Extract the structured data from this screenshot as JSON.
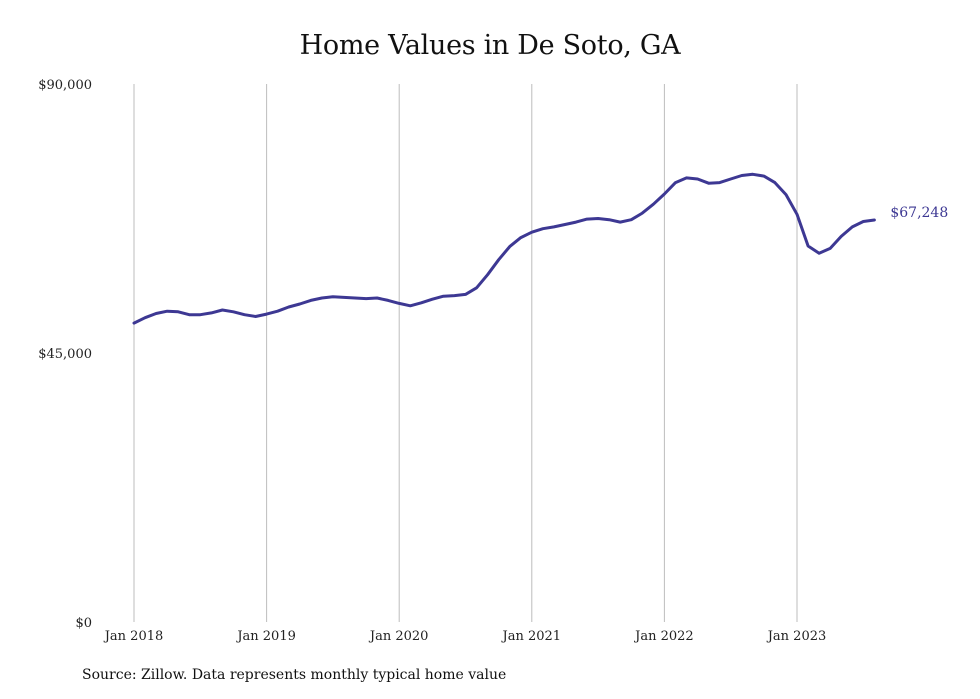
{
  "colors": {
    "line": "#3d3893",
    "grid": "#bdbdbd",
    "text": "#222222",
    "background": "#ffffff"
  },
  "chart_data": {
    "type": "line",
    "title": "Home Values in De Soto, GA",
    "xlabel": "",
    "ylabel": "",
    "ylim": [
      0,
      90000
    ],
    "y_ticks": [
      {
        "value": 0,
        "label": "$0"
      },
      {
        "value": 45000,
        "label": "$45,000"
      },
      {
        "value": 90000,
        "label": "$90,000"
      }
    ],
    "x_ticks": [
      "Jan 2018",
      "Jan 2019",
      "Jan 2020",
      "Jan 2021",
      "Jan 2022",
      "Jan 2023"
    ],
    "grid": "vertical at each x tick",
    "x": [
      "2018-01",
      "2018-02",
      "2018-03",
      "2018-04",
      "2018-05",
      "2018-06",
      "2018-07",
      "2018-08",
      "2018-09",
      "2018-10",
      "2018-11",
      "2018-12",
      "2019-01",
      "2019-02",
      "2019-03",
      "2019-04",
      "2019-05",
      "2019-06",
      "2019-07",
      "2019-08",
      "2019-09",
      "2019-10",
      "2019-11",
      "2019-12",
      "2020-01",
      "2020-02",
      "2020-03",
      "2020-04",
      "2020-05",
      "2020-06",
      "2020-07",
      "2020-08",
      "2020-09",
      "2020-10",
      "2020-11",
      "2020-12",
      "2021-01",
      "2021-02",
      "2021-03",
      "2021-04",
      "2021-05",
      "2021-06",
      "2021-07",
      "2021-08",
      "2021-09",
      "2021-10",
      "2021-11",
      "2021-12",
      "2022-01",
      "2022-02",
      "2022-03",
      "2022-04",
      "2022-05",
      "2022-06",
      "2022-07",
      "2022-08",
      "2022-09",
      "2022-10",
      "2022-11",
      "2022-12",
      "2023-01",
      "2023-02",
      "2023-03",
      "2023-04",
      "2023-05",
      "2023-06",
      "2023-07",
      "2023-08"
    ],
    "series": [
      {
        "values": [
          50000,
          50900,
          51600,
          52000,
          51900,
          51400,
          51400,
          51700,
          52200,
          51900,
          51400,
          51100,
          51500,
          52000,
          52700,
          53200,
          53800,
          54200,
          54400,
          54300,
          54200,
          54100,
          54200,
          53800,
          53300,
          52900,
          53400,
          54000,
          54500,
          54600,
          54800,
          55900,
          58100,
          60600,
          62800,
          64300,
          65200,
          65800,
          66100,
          66500,
          66900,
          67400,
          67500,
          67300,
          66900,
          67300,
          68400,
          69900,
          71600,
          73500,
          74300,
          74100,
          73400,
          73500,
          74100,
          74700,
          74900,
          74600,
          73500,
          71500,
          68200,
          62900,
          61700,
          62500,
          64500,
          66100,
          67000,
          67248
        ]
      }
    ],
    "end_label": "$67,248"
  },
  "source_note": "Source: Zillow. Data represents monthly typical home value"
}
